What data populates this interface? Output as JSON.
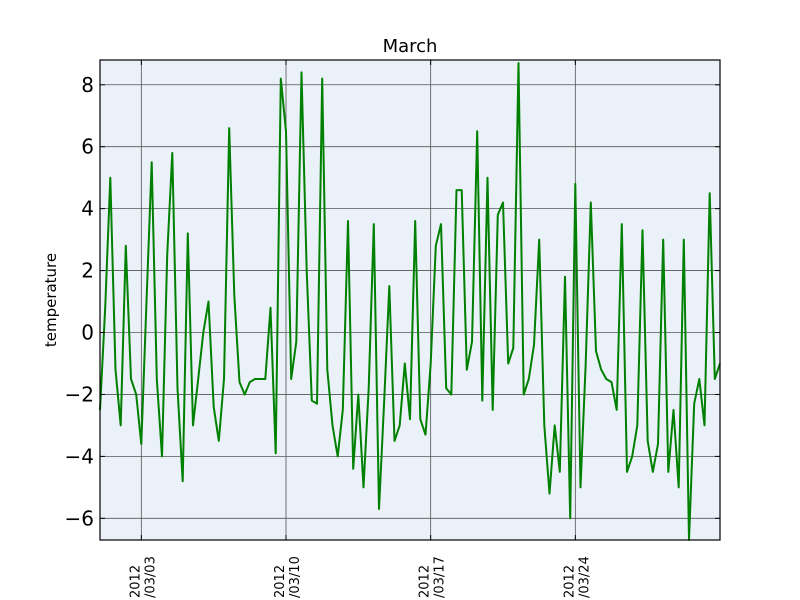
{
  "chart_data": {
    "type": "line",
    "title": "March",
    "xlabel": "",
    "ylabel": "temperature",
    "x_range": [
      "2012-03-01",
      "2012-03-31"
    ],
    "ylim": [
      -6.7,
      8.8
    ],
    "y_ticks": [
      -6,
      -4,
      -2,
      0,
      2,
      4,
      6,
      8
    ],
    "y_tick_labels": [
      "−6",
      "−4",
      "−2",
      "0",
      "2",
      "4",
      "6",
      "8"
    ],
    "x_ticks": [
      {
        "date": "2012-03-03",
        "line1": "2012",
        "line2": "/03/03"
      },
      {
        "date": "2012-03-10",
        "line1": "2012",
        "line2": "/03/10"
      },
      {
        "date": "2012-03-17",
        "line1": "2012",
        "line2": "/03/17"
      },
      {
        "date": "2012-03-24",
        "line1": "2012",
        "line2": "/03/24"
      }
    ],
    "grid": true,
    "background_color": "#eaf1f8",
    "series": [
      {
        "color": "#008000",
        "x": [
          "2012-03-01 00:00",
          "2012-03-01 06:00",
          "2012-03-01 12:00",
          "2012-03-01 18:00",
          "2012-03-02 00:00",
          "2012-03-02 06:00",
          "2012-03-02 12:00",
          "2012-03-02 18:00",
          "2012-03-03 00:00",
          "2012-03-03 06:00",
          "2012-03-03 12:00",
          "2012-03-03 18:00",
          "2012-03-04 00:00",
          "2012-03-04 06:00",
          "2012-03-04 12:00",
          "2012-03-04 18:00",
          "2012-03-05 00:00",
          "2012-03-05 06:00",
          "2012-03-05 12:00",
          "2012-03-05 18:00",
          "2012-03-06 00:00",
          "2012-03-06 06:00",
          "2012-03-06 12:00",
          "2012-03-06 18:00",
          "2012-03-07 00:00",
          "2012-03-07 06:00",
          "2012-03-07 12:00",
          "2012-03-07 18:00",
          "2012-03-08 00:00",
          "2012-03-08 06:00",
          "2012-03-08 12:00",
          "2012-03-08 18:00",
          "2012-03-09 00:00",
          "2012-03-09 06:00",
          "2012-03-09 12:00",
          "2012-03-09 18:00",
          "2012-03-10 00:00",
          "2012-03-10 06:00",
          "2012-03-10 12:00",
          "2012-03-10 18:00",
          "2012-03-11 00:00",
          "2012-03-11 06:00",
          "2012-03-11 12:00",
          "2012-03-11 18:00",
          "2012-03-12 00:00",
          "2012-03-12 06:00",
          "2012-03-12 12:00",
          "2012-03-12 18:00",
          "2012-03-13 00:00",
          "2012-03-13 06:00",
          "2012-03-13 12:00",
          "2012-03-13 18:00",
          "2012-03-14 00:00",
          "2012-03-14 06:00",
          "2012-03-14 12:00",
          "2012-03-14 18:00",
          "2012-03-15 00:00",
          "2012-03-15 06:00",
          "2012-03-15 12:00",
          "2012-03-15 18:00",
          "2012-03-16 00:00",
          "2012-03-16 06:00",
          "2012-03-16 12:00",
          "2012-03-16 18:00",
          "2012-03-17 00:00",
          "2012-03-17 06:00",
          "2012-03-17 12:00",
          "2012-03-17 18:00",
          "2012-03-18 00:00",
          "2012-03-18 06:00",
          "2012-03-18 12:00",
          "2012-03-18 18:00",
          "2012-03-19 00:00",
          "2012-03-19 06:00",
          "2012-03-19 12:00",
          "2012-03-19 18:00",
          "2012-03-20 00:00",
          "2012-03-20 06:00",
          "2012-03-20 12:00",
          "2012-03-20 18:00",
          "2012-03-21 00:00",
          "2012-03-21 06:00",
          "2012-03-21 12:00",
          "2012-03-21 18:00",
          "2012-03-22 00:00",
          "2012-03-22 06:00",
          "2012-03-22 12:00",
          "2012-03-22 18:00",
          "2012-03-23 00:00",
          "2012-03-23 06:00",
          "2012-03-23 12:00",
          "2012-03-23 18:00",
          "2012-03-24 00:00",
          "2012-03-24 06:00",
          "2012-03-24 12:00",
          "2012-03-24 18:00",
          "2012-03-25 00:00",
          "2012-03-25 06:00",
          "2012-03-25 12:00",
          "2012-03-25 18:00",
          "2012-03-26 00:00",
          "2012-03-26 06:00",
          "2012-03-26 12:00",
          "2012-03-26 18:00",
          "2012-03-27 00:00",
          "2012-03-27 06:00",
          "2012-03-27 12:00",
          "2012-03-27 18:00",
          "2012-03-28 00:00",
          "2012-03-28 06:00",
          "2012-03-28 12:00",
          "2012-03-28 18:00",
          "2012-03-29 00:00",
          "2012-03-29 06:00",
          "2012-03-29 12:00",
          "2012-03-29 18:00",
          "2012-03-30 00:00",
          "2012-03-30 06:00",
          "2012-03-30 12:00",
          "2012-03-30 18:00",
          "2012-03-31 00:00"
        ],
        "values": [
          -2.5,
          0.8,
          5.0,
          -1.2,
          -3.0,
          2.8,
          -1.5,
          -2.0,
          -3.6,
          1.0,
          5.5,
          -1.5,
          -4.0,
          2.5,
          5.8,
          -1.8,
          -4.8,
          3.2,
          -3.0,
          -1.5,
          0.0,
          1.0,
          -2.4,
          -3.5,
          -1.5,
          6.6,
          1.2,
          -1.6,
          -2.0,
          -1.6,
          -1.5,
          -1.5,
          -1.5,
          0.8,
          -3.9,
          8.2,
          6.5,
          -1.5,
          -0.3,
          8.4,
          2.0,
          -2.2,
          -2.3,
          8.2,
          -1.2,
          -3.0,
          -4.0,
          -2.5,
          3.6,
          -4.4,
          -2.0,
          -5.0,
          -1.8,
          3.5,
          -5.7,
          -2.2,
          1.5,
          -3.5,
          -3.0,
          -1.0,
          -2.8,
          3.6,
          -2.8,
          -3.3,
          -1.0,
          2.8,
          3.5,
          -1.8,
          -2.0,
          4.6,
          4.6,
          -1.2,
          -0.3,
          6.5,
          -2.2,
          5.0,
          -2.5,
          3.8,
          4.2,
          -1.0,
          -0.5,
          8.7,
          -2.0,
          -1.5,
          -0.4,
          3.0,
          -3.0,
          -5.2,
          -3.0,
          -4.5,
          1.8,
          -6.0,
          4.8,
          -5.0,
          -1.0,
          4.2,
          -0.6,
          -1.2,
          -1.5,
          -1.6,
          -2.5,
          3.5,
          -4.5,
          -4.0,
          -3.0,
          3.3,
          -3.5,
          -4.5,
          -3.6,
          3.0,
          -4.5,
          -2.5,
          -5.0,
          3.0,
          -6.7,
          -2.3,
          -1.5,
          -3.0,
          4.5,
          -1.5,
          -1.0
        ]
      }
    ]
  }
}
